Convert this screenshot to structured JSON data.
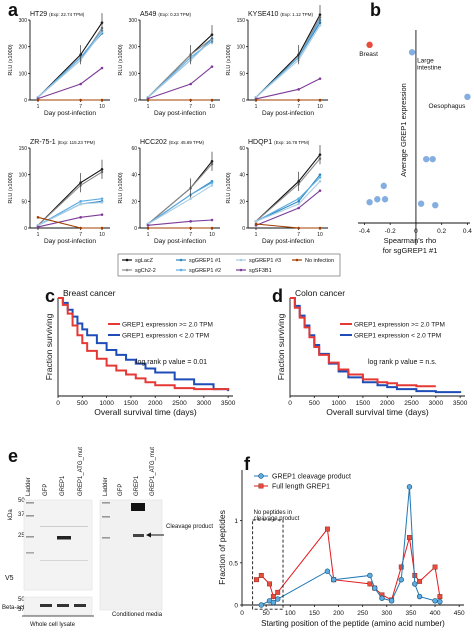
{
  "panels": {
    "a": "a",
    "b": "b",
    "c": "c",
    "d": "d",
    "e": "e",
    "f": "f"
  },
  "chart_data": [
    {
      "panel": "a",
      "type": "line",
      "xlabel": "Day post-infection",
      "ylabel": "RLU (x1000)",
      "x": [
        1,
        7,
        10
      ],
      "xticks": [
        "1",
        "7",
        "10"
      ],
      "legend": [
        {
          "name": "sgLacZ",
          "color": "#111111"
        },
        {
          "name": "sgCh2-2",
          "color": "#8c8c8c"
        },
        {
          "name": "sgGREP1 #1",
          "color": "#2e86c1"
        },
        {
          "name": "sgGREP1 #2",
          "color": "#5dade2"
        },
        {
          "name": "sgGREP1 #3",
          "color": "#a9cce3"
        },
        {
          "name": "sgSF3B1",
          "color": "#7d3c98"
        },
        {
          "name": "No infection",
          "color": "#a04000"
        }
      ],
      "subplots": [
        {
          "title": "HT29",
          "exp": "(Exp: 22.74 TPM)",
          "yticks": [
            0,
            100,
            200,
            300
          ],
          "ylim": [
            0,
            300
          ],
          "series": [
            [
              10,
              170,
              290
            ],
            [
              10,
              150,
              270
            ],
            [
              10,
              160,
              250
            ],
            [
              10,
              160,
              260
            ],
            [
              10,
              150,
              255
            ],
            [
              5,
              60,
              120
            ],
            [
              0,
              0,
              0
            ]
          ]
        },
        {
          "title": "A549",
          "exp": "(Exp: 0.23 TPM)",
          "yticks": [
            0,
            100,
            200,
            300
          ],
          "ylim": [
            0,
            300
          ],
          "series": [
            [
              10,
              170,
              245
            ],
            [
              10,
              170,
              230
            ],
            [
              10,
              150,
              230
            ],
            [
              10,
              160,
              220
            ],
            [
              10,
              150,
              225
            ],
            [
              5,
              60,
              125
            ],
            [
              0,
              0,
              0
            ]
          ]
        },
        {
          "title": "KYSE410",
          "exp": "(Exp: 1.12 TPM)",
          "yticks": [
            0,
            50,
            100,
            150
          ],
          "ylim": [
            0,
            150
          ],
          "series": [
            [
              5,
              85,
              160
            ],
            [
              5,
              80,
              155
            ],
            [
              5,
              80,
              145
            ],
            [
              5,
              80,
              150
            ],
            [
              5,
              75,
              140
            ],
            [
              2,
              20,
              40
            ],
            [
              0,
              0,
              0
            ]
          ]
        },
        {
          "title": "ZR-75-1",
          "exp": "(Exp: 115.23 TPM)",
          "yticks": [
            0,
            50,
            100,
            150
          ],
          "ylim": [
            0,
            150
          ],
          "series": [
            [
              5,
              85,
              110
            ],
            [
              5,
              80,
              105
            ],
            [
              5,
              45,
              50
            ],
            [
              5,
              50,
              55
            ],
            [
              5,
              45,
              48
            ],
            [
              2,
              20,
              25
            ],
            [
              20,
              0,
              0
            ]
          ]
        },
        {
          "title": "HCC202",
          "exp": "(Exp: 45.89 TPM)",
          "yticks": [
            0,
            20,
            40,
            60
          ],
          "ylim": [
            0,
            60
          ],
          "series": [
            [
              3,
              30,
              50
            ],
            [
              3,
              30,
              48
            ],
            [
              3,
              25,
              35
            ],
            [
              3,
              25,
              34
            ],
            [
              3,
              22,
              32
            ],
            [
              2,
              5,
              6
            ],
            [
              0,
              0,
              0
            ]
          ]
        },
        {
          "title": "HDQP1",
          "exp": "(Exp: 16.78 TPM)",
          "yticks": [
            0,
            20,
            40,
            60
          ],
          "ylim": [
            0,
            60
          ],
          "series": [
            [
              5,
              35,
              55
            ],
            [
              5,
              33,
              52
            ],
            [
              5,
              20,
              40
            ],
            [
              5,
              22,
              38
            ],
            [
              5,
              18,
              35
            ],
            [
              2,
              15,
              28
            ],
            [
              3,
              0,
              0
            ]
          ]
        }
      ]
    },
    {
      "panel": "b",
      "type": "scatter",
      "xlabel": "Spearman's rho",
      "xlabel2": "for sgGREP1 #1",
      "ylabel": "Average GREP1 expression",
      "xticks": [
        -0.4,
        -0.2,
        0,
        0.2,
        0.4
      ],
      "xtick_labels": [
        "-0.4",
        "-0.2",
        "0",
        "0.2",
        "0.4"
      ],
      "xlim": [
        -0.45,
        0.42
      ],
      "ylim": [
        -0.5,
        13
      ],
      "points": [
        {
          "x": -0.36,
          "y": 12,
          "color": "#e74c3c",
          "label": "Breast"
        },
        {
          "x": -0.03,
          "y": 11.5,
          "color": "#85aee0",
          "label": "Large intestine"
        },
        {
          "x": 0.4,
          "y": 8.5,
          "color": "#85aee0",
          "label": "Oesophagus"
        },
        {
          "x": -0.25,
          "y": 2.5,
          "color": "#85aee0",
          "label": ""
        },
        {
          "x": -0.3,
          "y": 1.6,
          "color": "#85aee0",
          "label": ""
        },
        {
          "x": -0.24,
          "y": 1.6,
          "color": "#85aee0",
          "label": ""
        },
        {
          "x": -0.36,
          "y": 1.4,
          "color": "#85aee0",
          "label": ""
        },
        {
          "x": 0.08,
          "y": 4.3,
          "color": "#85aee0",
          "label": ""
        },
        {
          "x": 0.13,
          "y": 4.3,
          "color": "#85aee0",
          "label": ""
        },
        {
          "x": 0.04,
          "y": 1.3,
          "color": "#85aee0",
          "label": ""
        },
        {
          "x": 0.15,
          "y": 1.2,
          "color": "#85aee0",
          "label": ""
        }
      ]
    },
    {
      "panel": "c",
      "type": "line",
      "title": "Breast cancer",
      "xlabel": "Overall survival time (days)",
      "ylabel": "Fraction surviving",
      "xticks": [
        0,
        500,
        1000,
        1500,
        2000,
        2500,
        3000,
        3500
      ],
      "xlim": [
        0,
        3600
      ],
      "ylim": [
        0,
        1
      ],
      "legend": [
        {
          "name": "GREP1 expression >= 2.0 TPM",
          "color": "#e53935"
        },
        {
          "name": "GREP1 expression < 2.0 TPM",
          "color": "#1e4db7"
        }
      ],
      "annotation": "log rank p value = 0.01",
      "series": [
        {
          "color": "#e53935",
          "x": [
            0,
            100,
            200,
            300,
            400,
            500,
            600,
            800,
            1000,
            1200,
            1400,
            1600,
            1800,
            2000,
            2400,
            2800,
            3500
          ],
          "y": [
            1,
            0.93,
            0.84,
            0.72,
            0.62,
            0.54,
            0.46,
            0.38,
            0.31,
            0.26,
            0.22,
            0.18,
            0.14,
            0.11,
            0.08,
            0.07,
            0.06
          ]
        },
        {
          "color": "#1e4db7",
          "x": [
            0,
            100,
            200,
            300,
            400,
            500,
            600,
            800,
            1000,
            1200,
            1400,
            1600,
            1800,
            2000,
            2400,
            2800,
            3200,
            3500
          ],
          "y": [
            1,
            0.95,
            0.88,
            0.81,
            0.74,
            0.68,
            0.62,
            0.54,
            0.47,
            0.42,
            0.37,
            0.33,
            0.28,
            0.24,
            0.17,
            0.12,
            0.07,
            0.05
          ]
        }
      ]
    },
    {
      "panel": "d",
      "type": "line",
      "title": "Colon cancer",
      "xlabel": "Overall survival time (days)",
      "ylabel": "Fraction surviving",
      "xticks": [
        0,
        500,
        1000,
        1500,
        2000,
        2500,
        3000,
        3500
      ],
      "xlim": [
        0,
        3600
      ],
      "ylim": [
        0,
        1
      ],
      "legend": [
        {
          "name": "GREP1 expression >= 2.0 TPM",
          "color": "#e53935"
        },
        {
          "name": "GREP1 expression < 2.0 TPM",
          "color": "#1e4db7"
        }
      ],
      "annotation": "log rank p value = n.s.",
      "series": [
        {
          "color": "#e53935",
          "x": [
            0,
            100,
            200,
            300,
            400,
            500,
            600,
            800,
            1000,
            1200,
            1500,
            1800,
            2000,
            2200,
            2600,
            3000
          ],
          "y": [
            1,
            0.9,
            0.8,
            0.7,
            0.6,
            0.5,
            0.42,
            0.34,
            0.27,
            0.22,
            0.17,
            0.14,
            0.13,
            0.11,
            0.1,
            0.1
          ]
        },
        {
          "color": "#1e4db7",
          "x": [
            0,
            100,
            200,
            300,
            400,
            500,
            600,
            800,
            1000,
            1200,
            1500,
            1800,
            2000,
            2200,
            2600,
            3000,
            3500
          ],
          "y": [
            1,
            0.92,
            0.82,
            0.72,
            0.62,
            0.52,
            0.43,
            0.33,
            0.25,
            0.19,
            0.14,
            0.11,
            0.09,
            0.07,
            0.05,
            0.04,
            0.03
          ]
        }
      ]
    },
    {
      "panel": "f",
      "type": "line",
      "xlabel": "Starting position of the peptide (amino acid number)",
      "ylabel": "Fraction of peptides",
      "xticks": [
        0,
        50,
        100,
        150,
        200,
        250,
        300,
        350,
        400,
        450
      ],
      "xlim": [
        0,
        460
      ],
      "ylim": [
        0,
        1.2
      ],
      "yticks": [
        0,
        0.5,
        1
      ],
      "legend": [
        {
          "name": "GREP1 cleavage product",
          "color": "#1f78b4"
        },
        {
          "name": "Full length GREP1",
          "color": "#e31a1c"
        }
      ],
      "annotation": "No peptides in cleavage product",
      "series": [
        {
          "name": "GREP1 cleavage product",
          "color": "#1f78b4",
          "x": [
            40,
            57,
            65,
            74,
            177,
            190,
            265,
            275,
            290,
            310,
            330,
            347,
            358,
            368,
            400,
            410
          ],
          "y": [
            0.0,
            0.05,
            0.03,
            0.07,
            0.4,
            0.3,
            0.35,
            0.2,
            0.08,
            0.05,
            0.3,
            1.4,
            0.25,
            0.1,
            0.05,
            0.04
          ]
        },
        {
          "name": "Full length GREP1",
          "color": "#e31a1c",
          "x": [
            30,
            40,
            57,
            65,
            74,
            177,
            190,
            265,
            275,
            290,
            310,
            330,
            347,
            358,
            368,
            400,
            410
          ],
          "y": [
            0.3,
            0.35,
            0.25,
            0.1,
            0.15,
            0.9,
            0.3,
            0.25,
            0.2,
            0.12,
            0.06,
            0.45,
            0.8,
            0.35,
            0.28,
            0.45,
            0.1
          ]
        }
      ]
    }
  ],
  "blot": {
    "kda_label": "kDa",
    "markers": [
      "50",
      "37",
      "25",
      "50",
      "37"
    ],
    "lanes_left": [
      "Ladder",
      "GFP",
      "GREP1",
      "GREP1_ATG_mut"
    ],
    "lanes_right": [
      "Ladder",
      "GFP",
      "GREP1",
      "GREP1_ATG_mut"
    ],
    "row_v5": "V5",
    "row_actin": "Beta-actin",
    "cleavage": "Cleavage product",
    "caption_left": "Whole cell lysate",
    "caption_right": "Conditioned media"
  }
}
